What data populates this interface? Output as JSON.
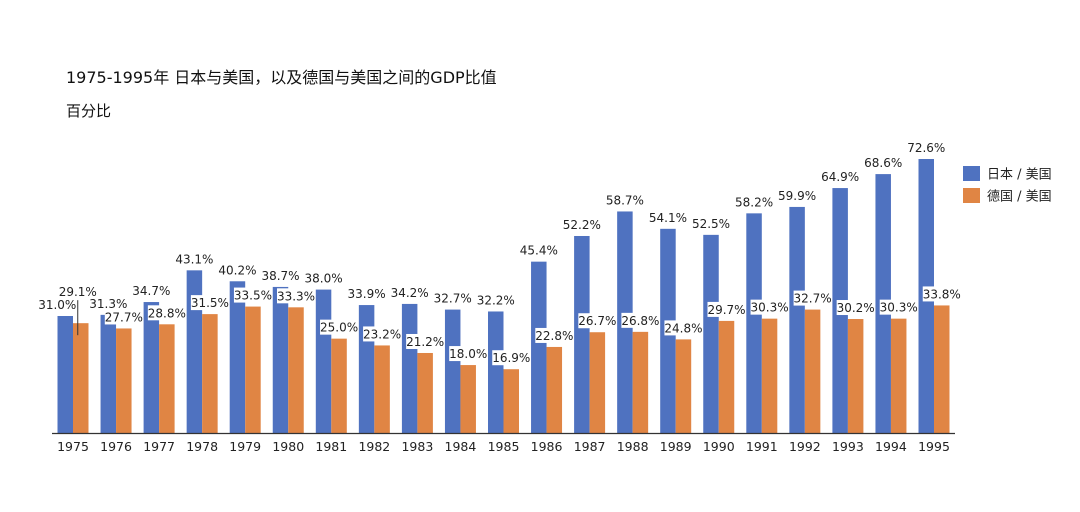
{
  "chart_data": {
    "type": "bar",
    "title": "1975-1995年  日本与美国，以及德国与美国之间的GDP比值",
    "subtitle": "百分比",
    "categories": [
      "1975",
      "1976",
      "1977",
      "1978",
      "1979",
      "1980",
      "1981",
      "1982",
      "1983",
      "1984",
      "1985",
      "1986",
      "1987",
      "1988",
      "1989",
      "1990",
      "1991",
      "1992",
      "1993",
      "1994",
      "1995"
    ],
    "series": [
      {
        "name": "日本 / 美国",
        "color": "#4F72C0",
        "values": [
          31.0,
          31.3,
          34.7,
          43.1,
          40.2,
          38.7,
          38.0,
          33.9,
          34.2,
          32.7,
          32.2,
          45.4,
          52.2,
          58.7,
          54.1,
          52.5,
          58.2,
          59.9,
          64.9,
          68.6,
          72.6
        ]
      },
      {
        "name": "德国 / 美国",
        "color": "#E08544",
        "values": [
          29.1,
          27.7,
          28.8,
          31.5,
          33.5,
          33.3,
          25.0,
          23.2,
          21.2,
          18.0,
          16.9,
          22.8,
          26.7,
          26.8,
          24.8,
          29.7,
          30.3,
          32.7,
          30.2,
          30.3,
          33.8
        ]
      }
    ],
    "value_format": "%",
    "ylim": [
      0,
      75
    ],
    "grid": false,
    "legend": "right"
  }
}
